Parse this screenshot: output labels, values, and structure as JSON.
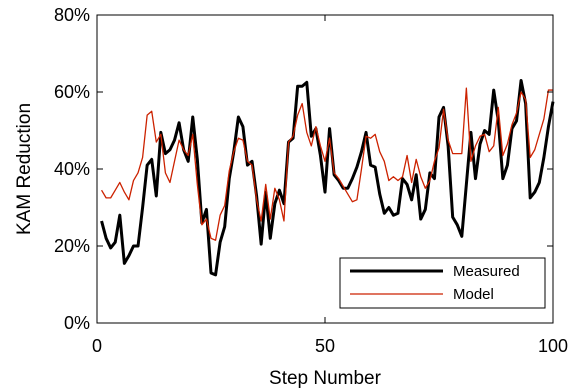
{
  "chart_data": {
    "type": "line",
    "xlabel": "Step Number",
    "ylabel": "KAM Reduction",
    "xlim": [
      0,
      100
    ],
    "ylim": [
      0,
      80
    ],
    "x_ticks": [
      0,
      50,
      100
    ],
    "y_ticks": [
      0,
      20,
      40,
      60,
      80
    ],
    "y_tick_labels": [
      "0%",
      "20%",
      "40%",
      "60%",
      "80%"
    ],
    "grid": false,
    "legend_position": "bottom-right",
    "series": [
      {
        "name": "Measured",
        "color": "#000000",
        "x": [
          1,
          2,
          3,
          4,
          5,
          6,
          7,
          8,
          9,
          10,
          11,
          12,
          13,
          14,
          15,
          16,
          17,
          18,
          19,
          20,
          21,
          22,
          23,
          24,
          25,
          26,
          27,
          28,
          29,
          30,
          31,
          32,
          33,
          34,
          35,
          36,
          37,
          38,
          39,
          40,
          41,
          42,
          43,
          44,
          45,
          46,
          47,
          48,
          49,
          50,
          51,
          52,
          53,
          54,
          55,
          56,
          57,
          58,
          59,
          60,
          61,
          62,
          63,
          64,
          65,
          66,
          67,
          68,
          69,
          70,
          71,
          72,
          73,
          74,
          75,
          76,
          77,
          78,
          79,
          80,
          81,
          82,
          83,
          84,
          85,
          86,
          87,
          88,
          89,
          90,
          91,
          92,
          93,
          94,
          95,
          96,
          97,
          98,
          99,
          100
        ],
        "values": [
          26.5,
          22,
          19.5,
          21,
          28,
          15.5,
          17.5,
          20,
          20,
          30,
          41,
          42.5,
          33,
          49.5,
          44,
          45,
          47.5,
          52,
          45,
          42,
          53.5,
          42.5,
          26,
          29.5,
          13,
          12.5,
          21,
          25,
          37.5,
          44.5,
          53.5,
          51,
          41,
          42,
          33,
          20.5,
          34,
          22,
          31,
          34.5,
          31,
          47,
          48,
          61.5,
          61.5,
          62.5,
          48.5,
          50.5,
          43.5,
          34,
          50.5,
          38.5,
          37,
          35,
          35,
          37.5,
          40.5,
          44.5,
          49.5,
          41,
          40.5,
          33.5,
          28.5,
          30,
          28,
          28.5,
          37.5,
          36,
          32,
          38.5,
          27,
          29.5,
          39,
          37.5,
          53.5,
          56,
          46,
          27.5,
          25.5,
          22.5,
          36,
          49.5,
          37.5,
          46.5,
          50,
          49,
          60.5,
          52.5,
          37.5,
          41,
          50.5,
          52.5,
          63,
          57,
          32.5,
          34,
          36.5,
          43,
          51,
          57.5
        ]
      },
      {
        "name": "Model",
        "color": "#cc2200",
        "x": [
          1,
          2,
          3,
          4,
          5,
          6,
          7,
          8,
          9,
          10,
          11,
          12,
          13,
          14,
          15,
          16,
          17,
          18,
          19,
          20,
          21,
          22,
          23,
          24,
          25,
          26,
          27,
          28,
          29,
          30,
          31,
          32,
          33,
          34,
          35,
          36,
          37,
          38,
          39,
          40,
          41,
          42,
          43,
          44,
          45,
          46,
          47,
          48,
          49,
          50,
          51,
          52,
          53,
          54,
          55,
          56,
          57,
          58,
          59,
          60,
          61,
          62,
          63,
          64,
          65,
          66,
          67,
          68,
          69,
          70,
          71,
          72,
          73,
          74,
          75,
          76,
          77,
          78,
          79,
          80,
          81,
          82,
          83,
          84,
          85,
          86,
          87,
          88,
          89,
          90,
          91,
          92,
          93,
          94,
          95,
          96,
          97,
          98,
          99,
          100
        ],
        "values": [
          34.5,
          32.5,
          32.5,
          34.5,
          36.5,
          34,
          32,
          37,
          39,
          43,
          54,
          55,
          47,
          49,
          39,
          36.5,
          42,
          47.5,
          45,
          43.5,
          49,
          36,
          25.5,
          27,
          22,
          21.5,
          28,
          30.5,
          39.5,
          44.5,
          48,
          47.5,
          42,
          41,
          32,
          26.5,
          36,
          27,
          35,
          32,
          26.5,
          47,
          48.5,
          54,
          57,
          49.5,
          46,
          51,
          46,
          42,
          48,
          39,
          37.5,
          35.5,
          33.5,
          31.5,
          32,
          40,
          48.5,
          48,
          49,
          44.5,
          42,
          37,
          38,
          37,
          38,
          43.5,
          36.5,
          42.5,
          38,
          35,
          37,
          42,
          45.5,
          55.5,
          47.5,
          44,
          44,
          44,
          61,
          42,
          46,
          48.5,
          49,
          44.5,
          46,
          56,
          43.5,
          46.5,
          51.5,
          54.5,
          60,
          58,
          43,
          45,
          49,
          53,
          60.5,
          60.5
        ]
      }
    ]
  }
}
